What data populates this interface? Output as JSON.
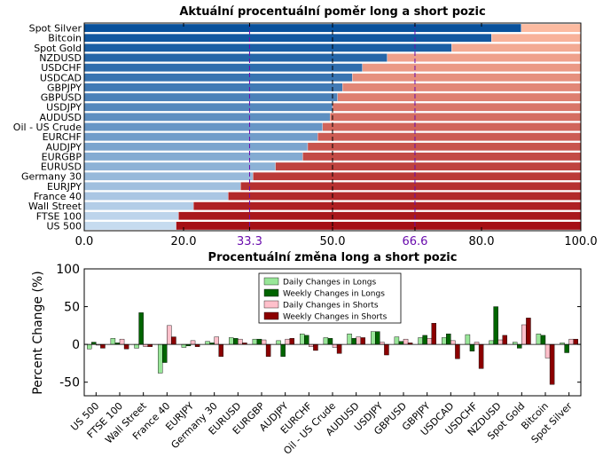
{
  "chart_data": [
    {
      "type": "bar",
      "orientation": "horizontal",
      "stacked": true,
      "title": "Aktuální procentuální poměr long a short pozic",
      "categories": [
        "Spot Silver",
        "Bitcoin",
        "Spot Gold",
        "NZDUSD",
        "USDCHF",
        "USDCAD",
        "GBPJPY",
        "GBPUSD",
        "USDJPY",
        "AUDUSD",
        "Oil - US Crude",
        "EURCHF",
        "AUDJPY",
        "EURGBP",
        "EURUSD",
        "Germany 30",
        "EURJPY",
        "France 40",
        "Wall Street",
        "FTSE 100",
        "US 500"
      ],
      "series": [
        {
          "values": [
            88,
            82,
            74,
            61,
            56,
            54,
            52,
            51,
            50,
            49.5,
            48,
            47,
            45,
            44,
            38.5,
            34,
            31.5,
            29,
            22,
            19,
            18.5
          ]
        },
        {
          "values": [
            12,
            18,
            26,
            39,
            44,
            46,
            48,
            49,
            50,
            50.5,
            52,
            53,
            55,
            56,
            61.5,
            66,
            68.5,
            71,
            78,
            81,
            81.5
          ]
        }
      ],
      "xlim": [
        0,
        100
      ],
      "xticks": [
        "0.0",
        "20.0",
        "33.3",
        "50.0",
        "66.6",
        "80.0",
        "100.0"
      ],
      "reference_lines": [
        33.3,
        50.0,
        66.6
      ],
      "colors": {
        "long_dark": "#08519c",
        "long_light": "#c6dbef",
        "short_light": "#fcbba1",
        "short_dark": "#a50f15",
        "reference_purple": "#6a0dad",
        "reference_black": "#000000"
      }
    },
    {
      "type": "bar",
      "title": "Procentuální změna long a short pozic",
      "ylabel": "Percent Change (%)",
      "categories": [
        "US 500",
        "FTSE 100",
        "Wall Street",
        "France 40",
        "EURJPY",
        "Germany 30",
        "EURUSD",
        "EURGBP",
        "AUDJPY",
        "EURCHF",
        "Oil - US Crude",
        "AUDUSD",
        "USDJPY",
        "GBPUSD",
        "GBPJPY",
        "USDCAD",
        "USDCHF",
        "NZDUSD",
        "Spot Gold",
        "Bitcoin",
        "Spot Silver"
      ],
      "series": [
        {
          "name": "Daily Changes in Longs",
          "color": "#98e698",
          "values": [
            -6,
            8,
            -5,
            -38,
            -4,
            4,
            9,
            7,
            5,
            14,
            9,
            14,
            17,
            10,
            9,
            9,
            13,
            5,
            3,
            14,
            2
          ]
        },
        {
          "name": "Weekly Changes in Longs",
          "color": "#006400",
          "values": [
            3,
            2,
            42,
            -24,
            -2,
            2,
            8,
            7,
            -16,
            12,
            8,
            8,
            17,
            4,
            12,
            14,
            -9,
            50,
            -5,
            12,
            -11
          ]
        },
        {
          "name": "Daily Changes in Shorts",
          "color": "#ffc0cb",
          "values": [
            -1,
            7,
            -3,
            25,
            5,
            10,
            7,
            6,
            7,
            -3,
            -4,
            10,
            3,
            7,
            8,
            5,
            3,
            6,
            26,
            -18,
            7
          ]
        },
        {
          "name": "Weekly Changes in Shorts",
          "color": "#8b0000",
          "values": [
            -5,
            -6,
            -3,
            10,
            -3,
            -16,
            2,
            -16,
            8,
            -8,
            -12,
            9,
            -14,
            2,
            28,
            -19,
            -32,
            12,
            35,
            -53,
            7
          ]
        }
      ],
      "ylim": [
        -68,
        100
      ],
      "yticks": [
        -50,
        0,
        50,
        100
      ],
      "legend_position": "top-center"
    }
  ]
}
